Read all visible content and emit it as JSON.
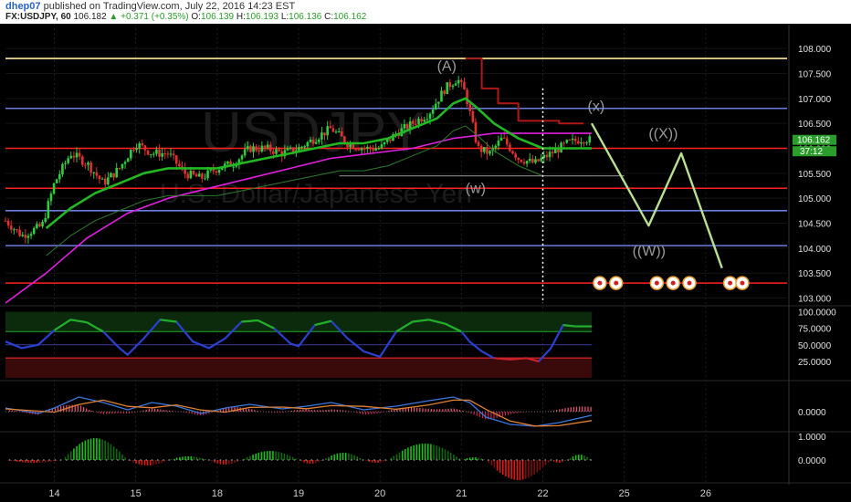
{
  "header": {
    "author": "dhep07",
    "published": "published on TradingView.com, July 22, 2016 14:23 EST",
    "symbol": "FX:USDJPY, 60",
    "last": "106.182",
    "change": "+0.371 (+0.35%)",
    "o_label": "O:",
    "o": "106.139",
    "h_label": "H:",
    "h": "106.193",
    "l_label": "L:",
    "l": "106.136",
    "c_label": "C:",
    "c": "106.162"
  },
  "colors": {
    "background": "#000000",
    "candle_up": "#2ecc40",
    "candle_down": "#e03030",
    "ema_green": "#22b822",
    "ma_magenta": "#e020e0",
    "projection": "#b8e090",
    "hline_red": "#ff2020",
    "hline_blue": "#6a7de0",
    "hline_yellow": "#ffe8a0"
  },
  "watermark": {
    "symbol": "USDJPY",
    "name": "U.S. Dollar/Japanese Yen"
  },
  "price_badges": {
    "last": "106.162",
    "countdown": "37:12"
  },
  "wave_labels": {
    "A": "(A)",
    "w": "(w)",
    "x": "(x)",
    "XX": "((X))",
    "WW": "((W))"
  },
  "chart_data": [
    {
      "type": "line",
      "panel": "price",
      "yticks": [
        "108.000",
        "107.500",
        "107.000",
        "106.500",
        "106.000",
        "105.500",
        "105.000",
        "104.500",
        "104.000",
        "103.500",
        "103.000"
      ],
      "ylim": [
        102.9,
        108.35
      ],
      "xticks": [
        {
          "label": "14",
          "x": 14
        },
        {
          "label": "15",
          "x": 15
        },
        {
          "label": "18",
          "x": 16
        },
        {
          "label": "19",
          "x": 17
        },
        {
          "label": "20",
          "x": 18
        },
        {
          "label": "21",
          "x": 19
        },
        {
          "label": "22",
          "x": 20
        },
        {
          "label": "25",
          "x": 21
        },
        {
          "label": "26",
          "x": 22
        }
      ],
      "xlim": [
        13.4,
        23.0
      ],
      "horizontal_levels": [
        {
          "price": 107.8,
          "color": "yellow"
        },
        {
          "price": 106.8,
          "color": "blue"
        },
        {
          "price": 106.0,
          "color": "red"
        },
        {
          "price": 105.2,
          "color": "red"
        },
        {
          "price": 104.75,
          "color": "blue"
        },
        {
          "price": 104.05,
          "color": "blue"
        },
        {
          "price": 103.3,
          "color": "red"
        }
      ],
      "price_path": [
        [
          13.4,
          104.55
        ],
        [
          13.6,
          104.25
        ],
        [
          13.85,
          104.45
        ],
        [
          14.0,
          105.3
        ],
        [
          14.2,
          105.9
        ],
        [
          14.4,
          105.7
        ],
        [
          14.6,
          105.3
        ],
        [
          14.8,
          105.6
        ],
        [
          15.0,
          106.1
        ],
        [
          15.2,
          105.9
        ],
        [
          15.4,
          105.9
        ],
        [
          15.6,
          105.5
        ],
        [
          15.8,
          105.4
        ],
        [
          16.0,
          105.6
        ],
        [
          16.2,
          105.7
        ],
        [
          16.4,
          106.0
        ],
        [
          16.6,
          106.0
        ],
        [
          16.8,
          105.9
        ],
        [
          17.0,
          106.0
        ],
        [
          17.2,
          106.2
        ],
        [
          17.4,
          106.4
        ],
        [
          17.6,
          106.1
        ],
        [
          17.8,
          106.0
        ],
        [
          18.0,
          106.0
        ],
        [
          18.2,
          106.3
        ],
        [
          18.4,
          106.5
        ],
        [
          18.6,
          106.7
        ],
        [
          18.8,
          107.2
        ],
        [
          18.95,
          107.4
        ],
        [
          19.05,
          107.1
        ],
        [
          19.2,
          106.0
        ],
        [
          19.35,
          105.9
        ],
        [
          19.5,
          106.2
        ],
        [
          19.7,
          105.8
        ],
        [
          19.9,
          105.7
        ],
        [
          20.1,
          105.9
        ],
        [
          20.3,
          106.1
        ],
        [
          20.5,
          106.2
        ],
        [
          20.6,
          106.16
        ]
      ],
      "ema_green": [
        [
          13.9,
          104.4
        ],
        [
          14.2,
          104.8
        ],
        [
          14.5,
          105.1
        ],
        [
          14.8,
          105.3
        ],
        [
          15.1,
          105.5
        ],
        [
          15.4,
          105.6
        ],
        [
          15.7,
          105.6
        ],
        [
          16.0,
          105.6
        ],
        [
          16.3,
          105.7
        ],
        [
          16.6,
          105.8
        ],
        [
          16.9,
          105.9
        ],
        [
          17.2,
          106.0
        ],
        [
          17.5,
          106.1
        ],
        [
          17.8,
          106.1
        ],
        [
          18.1,
          106.2
        ],
        [
          18.4,
          106.4
        ],
        [
          18.7,
          106.6
        ],
        [
          18.9,
          106.9
        ],
        [
          19.05,
          107.0
        ],
        [
          19.2,
          106.8
        ],
        [
          19.4,
          106.5
        ],
        [
          19.7,
          106.2
        ],
        [
          20.0,
          106.0
        ],
        [
          20.3,
          106.0
        ],
        [
          20.6,
          106.0
        ]
      ],
      "ma_magenta": [
        [
          13.4,
          102.9
        ],
        [
          13.9,
          103.5
        ],
        [
          14.4,
          104.2
        ],
        [
          14.9,
          104.7
        ],
        [
          15.4,
          105.0
        ],
        [
          15.9,
          105.2
        ],
        [
          16.4,
          105.4
        ],
        [
          16.9,
          105.6
        ],
        [
          17.4,
          105.8
        ],
        [
          17.9,
          105.9
        ],
        [
          18.4,
          106.0
        ],
        [
          18.9,
          106.2
        ],
        [
          19.4,
          106.3
        ],
        [
          19.9,
          106.3
        ],
        [
          20.3,
          106.3
        ],
        [
          20.6,
          106.3
        ]
      ],
      "projection": [
        [
          20.6,
          106.5
        ],
        [
          21.3,
          104.45
        ],
        [
          21.7,
          105.9
        ],
        [
          22.2,
          103.6
        ]
      ],
      "event_icons": [
        20.7,
        20.9,
        21.4,
        21.6,
        21.8,
        22.3,
        22.45
      ]
    },
    {
      "type": "line",
      "panel": "stochastic",
      "yticks": [
        "100.0000",
        "75.0000",
        "50.0000",
        "25.0000"
      ],
      "ylim": [
        0,
        105
      ],
      "bands": [
        {
          "from": 70,
          "to": 100,
          "color": "green"
        },
        {
          "from": 0,
          "to": 30,
          "color": "red"
        }
      ],
      "levels": [
        70,
        50,
        30
      ]
    },
    {
      "type": "bar",
      "panel": "macd",
      "yticks": [
        "0.0000"
      ],
      "ylim": [
        -1,
        1
      ]
    },
    {
      "type": "bar",
      "panel": "histogram",
      "yticks": [
        "1.0000",
        "0.0000"
      ],
      "ylim": [
        -1.2,
        1.3
      ]
    }
  ]
}
